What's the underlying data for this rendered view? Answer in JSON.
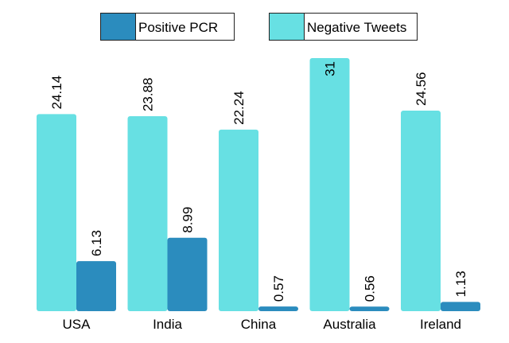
{
  "chart_data": {
    "type": "bar",
    "categories": [
      "USA",
      "India",
      "China",
      "Australia",
      "Ireland"
    ],
    "series": [
      {
        "name": "Negative Tweets",
        "color": "#67E0E3",
        "values": [
          24.14,
          23.88,
          22.24,
          31,
          24.56
        ],
        "labels": [
          "24.14",
          "23.88",
          "22.24",
          "31",
          "24.56"
        ]
      },
      {
        "name": "Positive PCR",
        "color": "#2B8CBE",
        "values": [
          6.13,
          8.99,
          0.57,
          0.56,
          1.13
        ],
        "labels": [
          "6.13",
          "8.99",
          "0.57",
          "0.56",
          "1.13"
        ]
      }
    ],
    "legend": {
      "position": "top-center",
      "order": [
        "Positive PCR",
        "Negative Tweets"
      ]
    },
    "ylim": [
      0,
      31
    ],
    "grid": false,
    "title": "",
    "xlabel": "",
    "ylabel": ""
  }
}
